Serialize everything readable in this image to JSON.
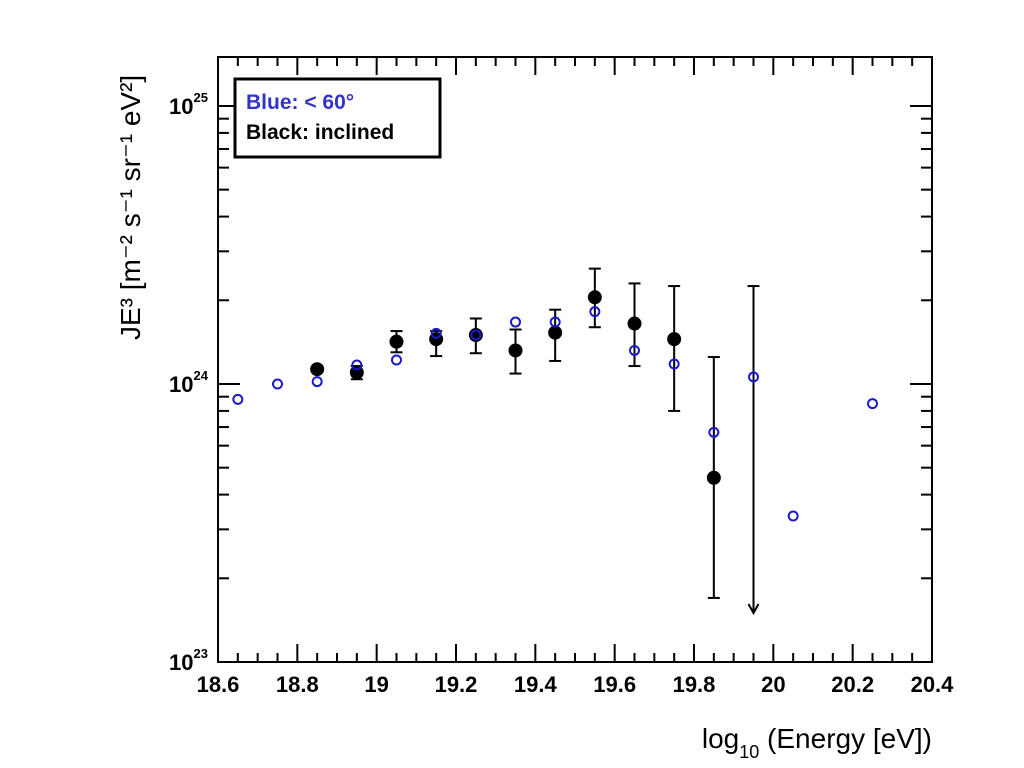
{
  "chart_data": {
    "type": "scatter",
    "xlabel": {
      "prefix": "log",
      "sub": "10",
      "rest": " (Energy [eV])"
    },
    "ylabel": "JE³ [m⁻² s⁻¹ sr⁻¹ eV²]",
    "xlim": [
      18.6,
      20.4
    ],
    "ylim": [
      1e+23,
      1.5e+25
    ],
    "y_scale": "log",
    "x_tick_labels": [
      "18.6",
      "18.8",
      "19",
      "19.2",
      "19.4",
      "19.6",
      "19.8",
      "20",
      "20.2",
      "20.4"
    ],
    "x_ticks": [
      18.6,
      18.8,
      19.0,
      19.2,
      19.4,
      19.6,
      19.8,
      20.0,
      20.2,
      20.4
    ],
    "y_ticks": [
      {
        "value": 1e+23,
        "base": "10",
        "exp": "23"
      },
      {
        "value": 1e+24,
        "base": "10",
        "exp": "24"
      },
      {
        "value": 1e+25,
        "base": "10",
        "exp": "25"
      }
    ],
    "legend": {
      "position": "top-left",
      "entries": [
        {
          "label": "Blue: < 60°",
          "color": "#3333cc"
        },
        {
          "label": "Black: inclined",
          "color": "#000000"
        }
      ]
    },
    "series": [
      {
        "color": "#1a1acc",
        "marker": "open-circle",
        "points": [
          {
            "x": 18.65,
            "y": 8.8e+23
          },
          {
            "x": 18.75,
            "y": 1e+24
          },
          {
            "x": 18.85,
            "y": 1.02e+24
          },
          {
            "x": 18.95,
            "y": 1.17e+24
          },
          {
            "x": 19.05,
            "y": 1.22e+24
          },
          {
            "x": 19.15,
            "y": 1.52e+24
          },
          {
            "x": 19.25,
            "y": 1.5e+24
          },
          {
            "x": 19.35,
            "y": 1.67e+24
          },
          {
            "x": 19.45,
            "y": 1.67e+24
          },
          {
            "x": 19.55,
            "y": 1.82e+24
          },
          {
            "x": 19.65,
            "y": 1.32e+24
          },
          {
            "x": 19.75,
            "y": 1.18e+24
          },
          {
            "x": 19.85,
            "y": 6.7e+23
          },
          {
            "x": 19.95,
            "y": 1.06e+24,
            "err_low": 1.5e+23,
            "err_high": 2.25e+24,
            "upper_limit_arrow": true
          },
          {
            "x": 20.05,
            "y": 3.35e+23
          },
          {
            "x": 20.25,
            "y": 8.5e+23
          }
        ]
      },
      {
        "color": "#000000",
        "marker": "filled-circle",
        "points": [
          {
            "x": 18.85,
            "y": 1.13e+24
          },
          {
            "x": 18.95,
            "y": 1.1e+24,
            "err_low": 1.04e+24,
            "err_high": 1.16e+24
          },
          {
            "x": 19.05,
            "y": 1.42e+24,
            "err_low": 1.3e+24,
            "err_high": 1.55e+24
          },
          {
            "x": 19.15,
            "y": 1.45e+24,
            "err_low": 1.26e+24,
            "err_high": 1.55e+24
          },
          {
            "x": 19.25,
            "y": 1.5e+24,
            "err_low": 1.29e+24,
            "err_high": 1.72e+24
          },
          {
            "x": 19.35,
            "y": 1.32e+24,
            "err_low": 1.09e+24,
            "err_high": 1.57e+24
          },
          {
            "x": 19.45,
            "y": 1.53e+24,
            "err_low": 1.21e+24,
            "err_high": 1.85e+24
          },
          {
            "x": 19.55,
            "y": 2.05e+24,
            "err_low": 1.6e+24,
            "err_high": 2.6e+24
          },
          {
            "x": 19.65,
            "y": 1.65e+24,
            "err_low": 1.16e+24,
            "err_high": 2.3e+24
          },
          {
            "x": 19.75,
            "y": 1.45e+24,
            "err_low": 8e+23,
            "err_high": 2.25e+24
          },
          {
            "x": 19.85,
            "y": 4.6e+23,
            "err_low": 1.7e+23,
            "err_high": 1.25e+24
          }
        ]
      }
    ]
  }
}
